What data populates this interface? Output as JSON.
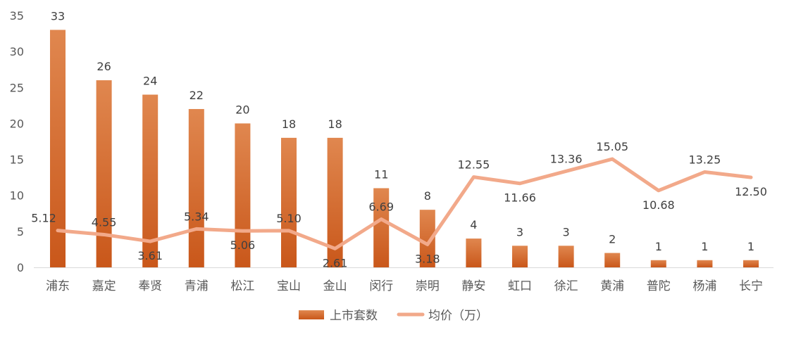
{
  "chart_data": {
    "type": "bar",
    "categories": [
      "浦东",
      "嘉定",
      "奉贤",
      "青浦",
      "松江",
      "宝山",
      "金山",
      "闵行",
      "崇明",
      "静安",
      "虹口",
      "徐汇",
      "黄浦",
      "普陀",
      "杨浦",
      "长宁"
    ],
    "series": [
      {
        "name": "上市套数",
        "type": "bar",
        "color": "#D86F2E",
        "values": [
          33,
          26,
          24,
          22,
          20,
          18,
          18,
          11,
          8,
          4,
          3,
          3,
          2,
          1,
          1,
          1
        ],
        "labels": [
          "33",
          "26",
          "24",
          "22",
          "20",
          "18",
          "18",
          "11",
          "8",
          "4",
          "3",
          "3",
          "2",
          "1",
          "1",
          "1"
        ]
      },
      {
        "name": "均价（万）",
        "type": "line",
        "color": "#F2A98A",
        "values": [
          5.12,
          4.55,
          3.61,
          5.34,
          5.06,
          5.1,
          2.61,
          6.69,
          3.18,
          12.55,
          11.66,
          13.36,
          15.05,
          10.68,
          13.25,
          12.5
        ],
        "labels": [
          "5.12",
          "4.55",
          "3.61",
          "5.34",
          "5.06",
          "5.10",
          "2.61",
          "6.69",
          "3.18",
          "12.55",
          "11.66",
          "13.36",
          "15.05",
          "10.68",
          "13.25",
          "12.50"
        ]
      }
    ],
    "y_ticks": [
      "0",
      "5",
      "10",
      "15",
      "20",
      "25",
      "30",
      "35"
    ],
    "ylim": [
      0,
      35
    ],
    "grid": false,
    "legend_position": "bottom"
  }
}
